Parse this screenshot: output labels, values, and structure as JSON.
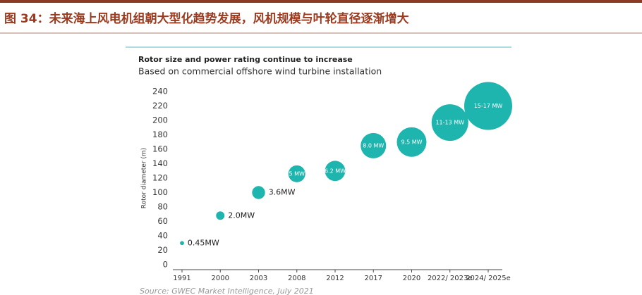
{
  "header": {
    "title": "图 34：未来海上风电机组朝大型化趋势发展，风机规模与叶轮直径逐渐增大"
  },
  "chart_data": {
    "type": "bubble",
    "title": "Rotor size and power rating continue to increase",
    "subtitle": "Based on commercial offshore wind turbine installation",
    "y_label": "Rotor diameter (m)",
    "source": "Source: GWEC Market Intelligence, July 2021",
    "categories": [
      "1991",
      "2000",
      "2003",
      "2008",
      "2012",
      "2017",
      "2020",
      "2022/ 2023e",
      "2024/ 2025e"
    ],
    "values": [
      30,
      68,
      100,
      126,
      130,
      165,
      170,
      197,
      220
    ],
    "sizes": [
      0.45,
      2.0,
      3.6,
      5,
      6.2,
      8.0,
      9.5,
      12,
      16
    ],
    "size_labels": [
      "0.45MW",
      "2.0MW",
      "3.6MW",
      "5 MW",
      "6.2 MW",
      "8.0 MW",
      "9.5 MW",
      "11-13 MW",
      "15-17 MW"
    ],
    "color": "#1db5ad",
    "ylim": [
      0,
      240
    ],
    "yticks": [
      0,
      20,
      40,
      60,
      80,
      100,
      120,
      140,
      160,
      180,
      200,
      220,
      240
    ],
    "grid": false
  }
}
